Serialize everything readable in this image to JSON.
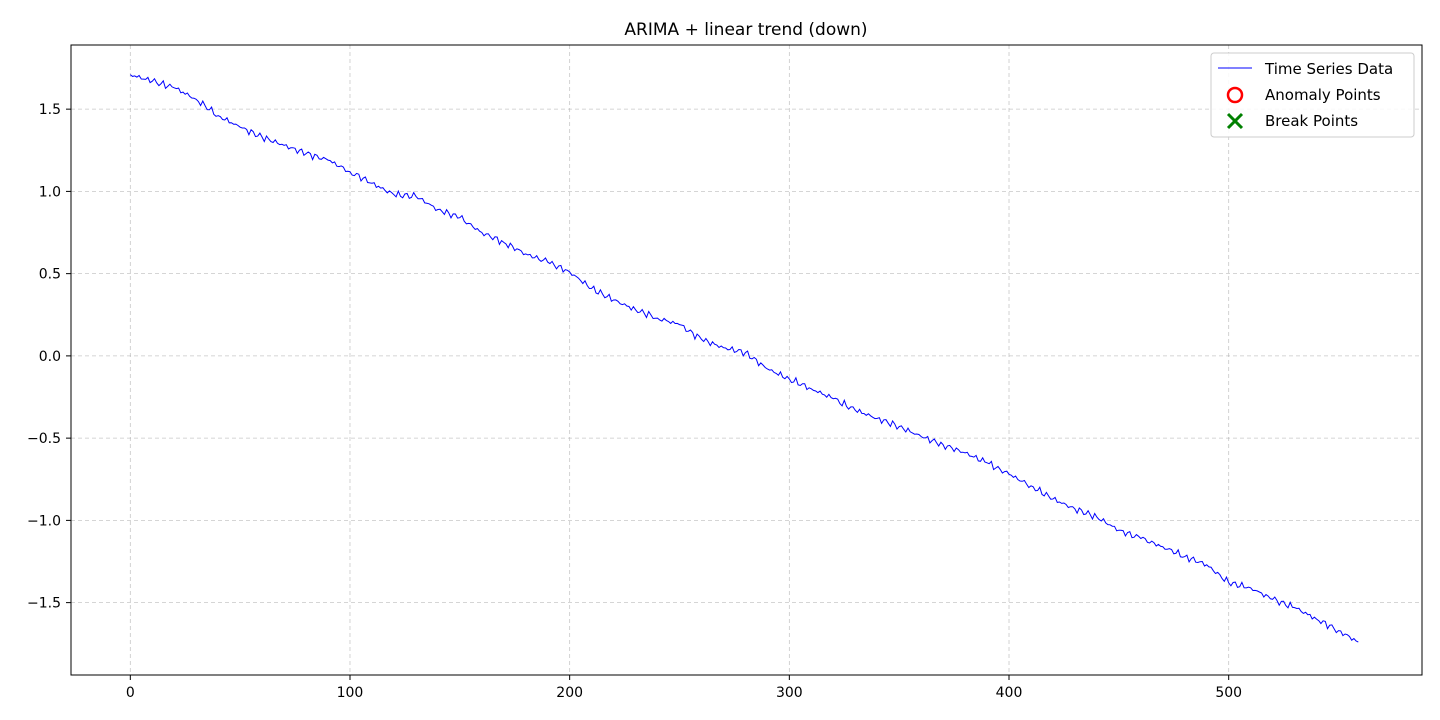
{
  "chart_data": {
    "type": "line",
    "title": "ARIMA + linear trend (down)",
    "xlabel": "",
    "ylabel": "",
    "xlim": [
      -27,
      588
    ],
    "ylim": [
      -1.94,
      1.89
    ],
    "x_ticks": [
      0,
      100,
      200,
      300,
      400,
      500
    ],
    "y_ticks": [
      -1.5,
      -1.0,
      -0.5,
      0.0,
      0.5,
      1.0,
      1.5
    ],
    "y_tick_labels": [
      "−1.5",
      "−1.0",
      "−0.5",
      "0.0",
      "0.5",
      "1.0",
      "1.5"
    ],
    "grid": true,
    "legend_position": "top-right",
    "series": [
      {
        "name": "Time Series Data",
        "color": "#0000ff",
        "x": [
          0,
          10,
          20,
          30,
          40,
          50,
          60,
          70,
          80,
          90,
          100,
          110,
          120,
          130,
          140,
          150,
          160,
          170,
          180,
          190,
          200,
          210,
          220,
          230,
          240,
          250,
          260,
          270,
          280,
          290,
          300,
          310,
          320,
          330,
          340,
          350,
          360,
          370,
          380,
          390,
          400,
          410,
          420,
          430,
          440,
          450,
          460,
          470,
          480,
          490,
          500,
          510,
          520,
          530,
          540,
          550,
          559
        ],
        "y": [
          1.71,
          1.67,
          1.63,
          1.56,
          1.46,
          1.39,
          1.33,
          1.28,
          1.23,
          1.19,
          1.12,
          1.05,
          0.98,
          0.97,
          0.89,
          0.84,
          0.75,
          0.69,
          0.62,
          0.57,
          0.51,
          0.41,
          0.34,
          0.28,
          0.23,
          0.19,
          0.1,
          0.05,
          0.02,
          -0.08,
          -0.14,
          -0.2,
          -0.26,
          -0.33,
          -0.38,
          -0.43,
          -0.49,
          -0.54,
          -0.59,
          -0.65,
          -0.72,
          -0.79,
          -0.87,
          -0.93,
          -0.98,
          -1.06,
          -1.11,
          -1.16,
          -1.22,
          -1.27,
          -1.38,
          -1.41,
          -1.48,
          -1.53,
          -1.6,
          -1.67,
          -1.74
        ]
      }
    ],
    "anomaly_points": {
      "name": "Anomaly Points",
      "color": "#ff0000",
      "x": [],
      "y": []
    },
    "break_points": {
      "name": "Break Points",
      "color": "#008000",
      "x": []
    }
  }
}
